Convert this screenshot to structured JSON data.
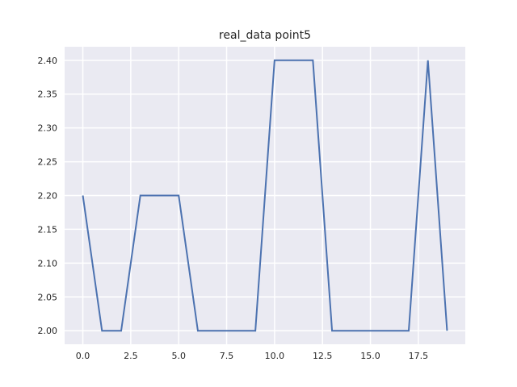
{
  "chart_data": {
    "type": "line",
    "title": "real_data point5",
    "xlabel": "",
    "ylabel": "",
    "grid": true,
    "xlim": [
      -0.95,
      19.95
    ],
    "ylim": [
      1.98,
      2.42
    ],
    "xticks": [
      "0.0",
      "2.5",
      "5.0",
      "7.5",
      "10.0",
      "12.5",
      "15.0",
      "17.5"
    ],
    "yticks": [
      "2.00",
      "2.05",
      "2.10",
      "2.15",
      "2.20",
      "2.25",
      "2.30",
      "2.35",
      "2.40"
    ],
    "series": [
      {
        "color": "#4c72b0",
        "x": [
          0,
          1,
          2,
          3,
          4,
          5,
          6,
          7,
          8,
          9,
          10,
          11,
          12,
          13,
          14,
          15,
          16,
          17,
          18,
          19
        ],
        "values": [
          2.2,
          2.0,
          2.0,
          2.2,
          2.2,
          2.2,
          2.0,
          2.0,
          2.0,
          2.0,
          2.4,
          2.4,
          2.4,
          2.0,
          2.0,
          2.0,
          2.0,
          2.0,
          2.4,
          2.0
        ]
      }
    ],
    "colors": {
      "plot_background": "#eaeaf2",
      "grid": "#ffffff",
      "text": "#262626"
    }
  }
}
